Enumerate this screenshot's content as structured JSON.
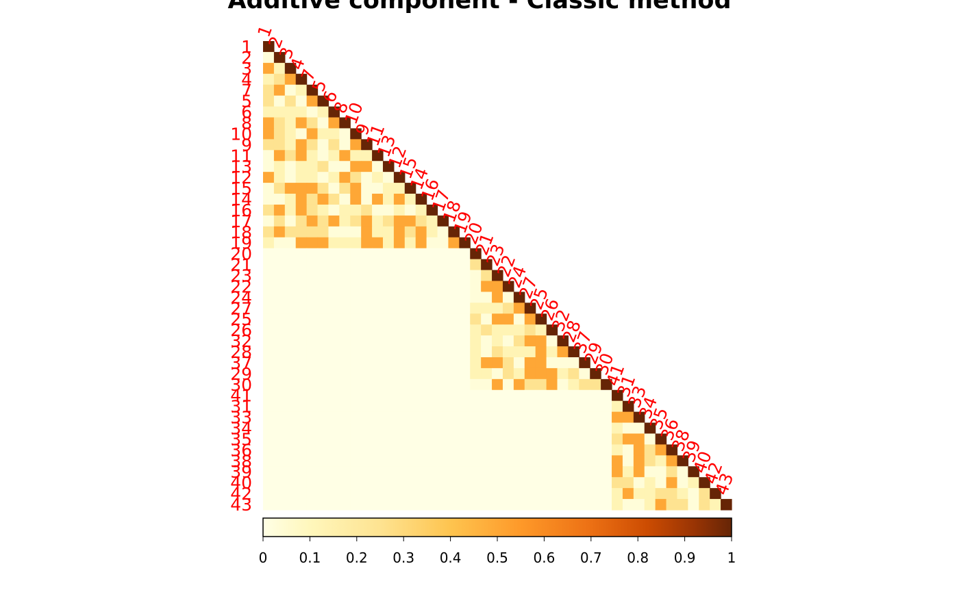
{
  "chart_data": {
    "type": "heatmap",
    "title": "Additive component - Classic method",
    "labels": [
      "1",
      "2",
      "3",
      "4",
      "7",
      "5",
      "6",
      "8",
      "10",
      "9",
      "11",
      "13",
      "12",
      "15",
      "14",
      "16",
      "17",
      "18",
      "19",
      "20",
      "21",
      "23",
      "22",
      "24",
      "27",
      "25",
      "26",
      "32",
      "28",
      "37",
      "29",
      "30",
      "41",
      "31",
      "33",
      "34",
      "35",
      "36",
      "38",
      "39",
      "40",
      "42",
      "43"
    ],
    "colorbar": {
      "ticks": [
        "0",
        "0.1",
        "0.2",
        "0.3",
        "0.4",
        "0.5",
        "0.6",
        "0.7",
        "0.8",
        "0.9",
        "1"
      ],
      "range": [
        0,
        1
      ]
    },
    "colors": {
      "labels": "#ff0000",
      "low": "#ffffe5",
      "high": "#662506"
    },
    "layout": "lower-triangle"
  }
}
